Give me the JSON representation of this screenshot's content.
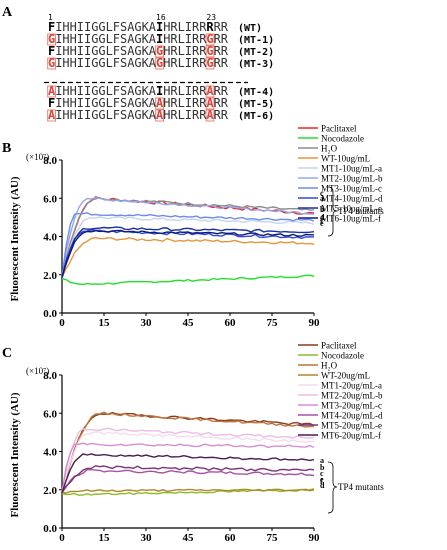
{
  "panel_a": {
    "label": "A",
    "positions": [
      "1",
      "16",
      "23"
    ],
    "sequences": [
      {
        "seq": "FIHHIIGGLFSAGKAIHRLIRRRRR",
        "mut": [],
        "bold": [
          0,
          15,
          22
        ],
        "tag": "(WT)"
      },
      {
        "seq": "GIHHIIGGLFSAGKAIHRLIRRGRR",
        "mut": [
          0,
          22
        ],
        "bold": [
          15
        ],
        "tag": "(MT-1)"
      },
      {
        "seq": "FIHHIIGGLFSAGKAGHRLIRRGRR",
        "mut": [
          15,
          22
        ],
        "bold": [
          0
        ],
        "tag": "(MT-2)"
      },
      {
        "seq": "GIHHIIGGLFSAGKAGHRLIRRGRR",
        "mut": [
          0,
          15,
          22
        ],
        "bold": [],
        "tag": "(MT-3)"
      },
      {
        "seq": "AIHHIIGGLFSAGKAIHRLIRRARR",
        "mut": [
          0,
          22
        ],
        "bold": [
          15
        ],
        "tag": "(MT-4)"
      },
      {
        "seq": "FIHHIIGGLFSAGKAAHRLIRRARR",
        "mut": [
          15,
          22
        ],
        "bold": [
          0
        ],
        "tag": "(MT-5)"
      },
      {
        "seq": "AIHHIIGGLFSAGKAAHRLIRRARR",
        "mut": [
          0,
          15,
          22
        ],
        "bold": [],
        "tag": "(MT-6)"
      }
    ]
  },
  "chart_data": [
    {
      "panel": "B",
      "type": "line",
      "multiplier": "(×10⁷)",
      "ylabel": "Fluorescent Intensity (AU)",
      "xlabel": "",
      "xlim": [
        0,
        90
      ],
      "ylim": [
        0,
        8
      ],
      "xticks": [
        "0",
        "15",
        "30",
        "45",
        "60",
        "75",
        "90"
      ],
      "yticks": [
        "0.0",
        "2.0",
        "4.0",
        "6.0",
        "8.0"
      ],
      "group_label": "TP4 mutants",
      "series": [
        {
          "name": "Paclitaxel",
          "color": "#e8262b",
          "start": 1.85,
          "peak": 6.0,
          "end": 5.2,
          "rise": 12,
          "noise": 0.09
        },
        {
          "name": "Nocodazole",
          "color": "#22e02c",
          "start": 1.8,
          "peak": 1.5,
          "end": 1.95,
          "rise": 8,
          "noise": 0.05
        },
        {
          "name": "H₂O",
          "color": "#8c8c8c",
          "start": 1.85,
          "peak": 6.0,
          "end": 5.35,
          "rise": 12,
          "noise": 0.07
        },
        {
          "name": "WT-10ug/mL",
          "color": "#e6963c",
          "start": 1.85,
          "peak": 3.9,
          "end": 3.65,
          "rise": 12,
          "noise": 0.07
        },
        {
          "name": "MT1-10ug/mL-a",
          "color": "#c8d3f4",
          "start": 1.85,
          "peak": 5.0,
          "end": 4.7,
          "rise": 10,
          "noise": 0.07,
          "tag": "a"
        },
        {
          "name": "MT2-10ug/mL-b",
          "color": "#93a7ee",
          "start": 1.9,
          "peak": 6.0,
          "end": 5.2,
          "rise": 9,
          "noise": 0.06,
          "tag": "b"
        },
        {
          "name": "MT3-10ug/mL-c",
          "color": "#6d8ceb",
          "start": 1.9,
          "peak": 5.2,
          "end": 4.85,
          "rise": 5,
          "noise": 0.06,
          "tag": "c"
        },
        {
          "name": "MT4-10ug/mL-d",
          "color": "#2f48e0",
          "start": 1.85,
          "peak": 4.3,
          "end": 3.95,
          "rise": 8,
          "noise": 0.07,
          "tag": "d"
        },
        {
          "name": "MT5-10ug/mL-e",
          "color": "#1a2fa8",
          "start": 1.85,
          "peak": 4.45,
          "end": 4.25,
          "rise": 9,
          "noise": 0.07,
          "tag": "e"
        },
        {
          "name": "MT6-10ug/mL-f",
          "color": "#0d1a6e",
          "start": 1.85,
          "peak": 4.3,
          "end": 4.05,
          "rise": 9,
          "noise": 0.06,
          "tag": "f"
        }
      ]
    },
    {
      "panel": "C",
      "type": "line",
      "multiplier": "(×10⁷)",
      "ylabel": "Fluorescent Intensity (AU)",
      "xlabel": "",
      "xlim": [
        0,
        90
      ],
      "ylim": [
        0,
        8
      ],
      "xticks": [
        "0",
        "15",
        "30",
        "45",
        "60",
        "75",
        "90"
      ],
      "yticks": [
        "0.0",
        "2.0",
        "4.0",
        "6.0",
        "8.0"
      ],
      "group_label": "TP4 mutants",
      "series": [
        {
          "name": "Paclitaxel",
          "color": "#8b3a1e",
          "start": 1.85,
          "peak": 6.0,
          "end": 5.4,
          "rise": 14,
          "noise": 0.07
        },
        {
          "name": "Nocodazole",
          "color": "#8bbd2a",
          "start": 1.8,
          "peak": 1.75,
          "end": 2.0,
          "rise": 8,
          "noise": 0.05
        },
        {
          "name": "H₂O",
          "color": "#c0743a",
          "start": 1.85,
          "peak": 6.0,
          "end": 5.3,
          "rise": 14,
          "noise": 0.06
        },
        {
          "name": "WT-20ug/mL",
          "color": "#b0872a",
          "start": 1.85,
          "peak": 1.95,
          "end": 2.0,
          "rise": 8,
          "noise": 0.05
        },
        {
          "name": "MT1-20ug/mL-a",
          "color": "#f3dcef",
          "start": 1.9,
          "peak": 5.0,
          "end": 4.5,
          "rise": 10,
          "noise": 0.07,
          "tag": "a"
        },
        {
          "name": "MT2-20ug/mL-b",
          "color": "#ebbde4",
          "start": 1.9,
          "peak": 5.2,
          "end": 4.7,
          "rise": 8,
          "noise": 0.07,
          "tag": "b"
        },
        {
          "name": "MT3-20ug/mL-c",
          "color": "#d98ed3",
          "start": 1.9,
          "peak": 4.4,
          "end": 4.25,
          "rise": 5,
          "noise": 0.07,
          "tag": "c"
        },
        {
          "name": "MT4-20ug/mL-d",
          "color": "#a653a6",
          "start": 1.85,
          "peak": 3.0,
          "end": 2.8,
          "rise": 10,
          "noise": 0.07,
          "tag": "d"
        },
        {
          "name": "MT5-20ug/mL-e",
          "color": "#7a3478",
          "start": 1.85,
          "peak": 3.2,
          "end": 3.0,
          "rise": 12,
          "noise": 0.07,
          "tag": "e"
        },
        {
          "name": "MT6-20ug/mL-f",
          "color": "#4a1e4e",
          "start": 1.85,
          "peak": 3.85,
          "end": 3.55,
          "rise": 8,
          "noise": 0.06,
          "tag": "f"
        }
      ]
    }
  ]
}
